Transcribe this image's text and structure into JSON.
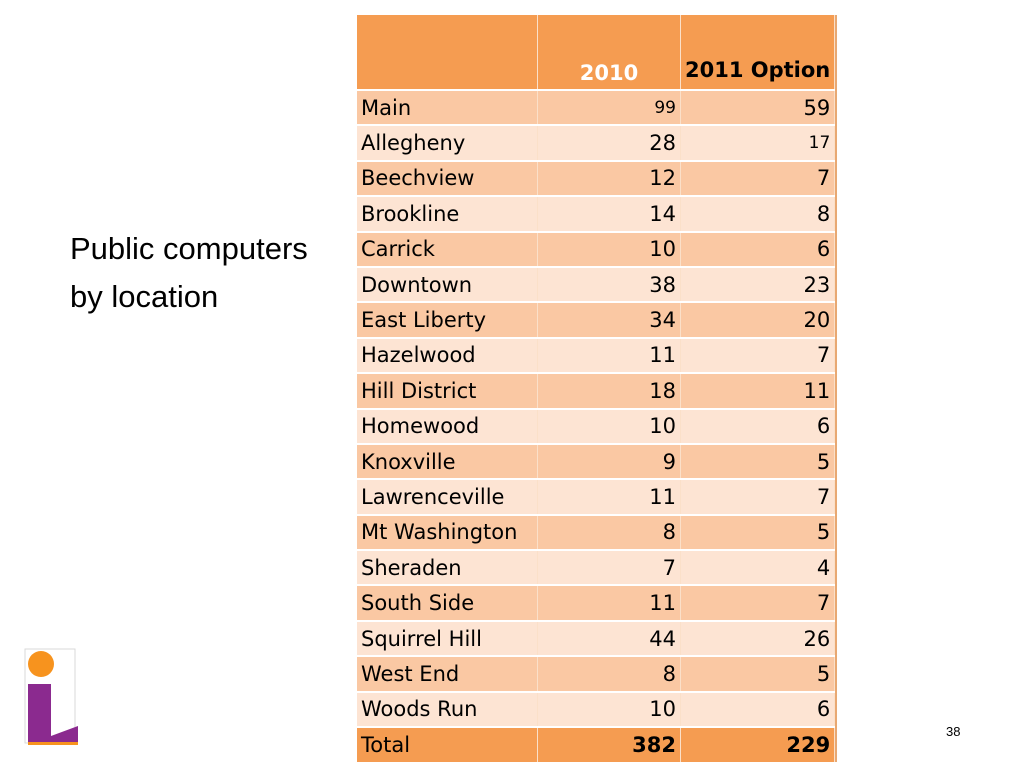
{
  "slide": {
    "title": "Public computers by location",
    "page_number": "38"
  },
  "table": {
    "headers": [
      "",
      "2010",
      "2011 Option"
    ],
    "rows": [
      {
        "location": "Main",
        "y2010": "99",
        "y2011": "59"
      },
      {
        "location": "Allegheny",
        "y2010": "28",
        "y2011": "17"
      },
      {
        "location": "Beechview",
        "y2010": "12",
        "y2011": "7"
      },
      {
        "location": "Brookline",
        "y2010": "14",
        "y2011": "8"
      },
      {
        "location": "Carrick",
        "y2010": "10",
        "y2011": "6"
      },
      {
        "location": "Downtown",
        "y2010": "38",
        "y2011": "23"
      },
      {
        "location": "East Liberty",
        "y2010": "34",
        "y2011": "20"
      },
      {
        "location": "Hazelwood",
        "y2010": "11",
        "y2011": "7"
      },
      {
        "location": "Hill District",
        "y2010": "18",
        "y2011": "11"
      },
      {
        "location": "Homewood",
        "y2010": "10",
        "y2011": "6"
      },
      {
        "location": "Knoxville",
        "y2010": "9",
        "y2011": "5"
      },
      {
        "location": "Lawrenceville",
        "y2010": "11",
        "y2011": "7"
      },
      {
        "location": "Mt Washington",
        "y2010": "8",
        "y2011": "5"
      },
      {
        "location": "Sheraden",
        "y2010": "7",
        "y2011": "4"
      },
      {
        "location": "South Side",
        "y2010": "11",
        "y2011": "7"
      },
      {
        "location": "Squirrel Hill",
        "y2010": "44",
        "y2011": "26"
      },
      {
        "location": "West End",
        "y2010": "8",
        "y2011": "5"
      },
      {
        "location": "Woods Run",
        "y2010": "10",
        "y2011": "6"
      }
    ],
    "total": {
      "location": "Total",
      "y2010": "382",
      "y2011": "229"
    }
  },
  "colors": {
    "header": "#f59c51",
    "row_dark": "#fac8a3",
    "row_light": "#fde4d3",
    "logo_orange": "#f7931e",
    "logo_purple": "#8b2a8f"
  },
  "logo": {
    "icon": "library-logo-icon"
  }
}
